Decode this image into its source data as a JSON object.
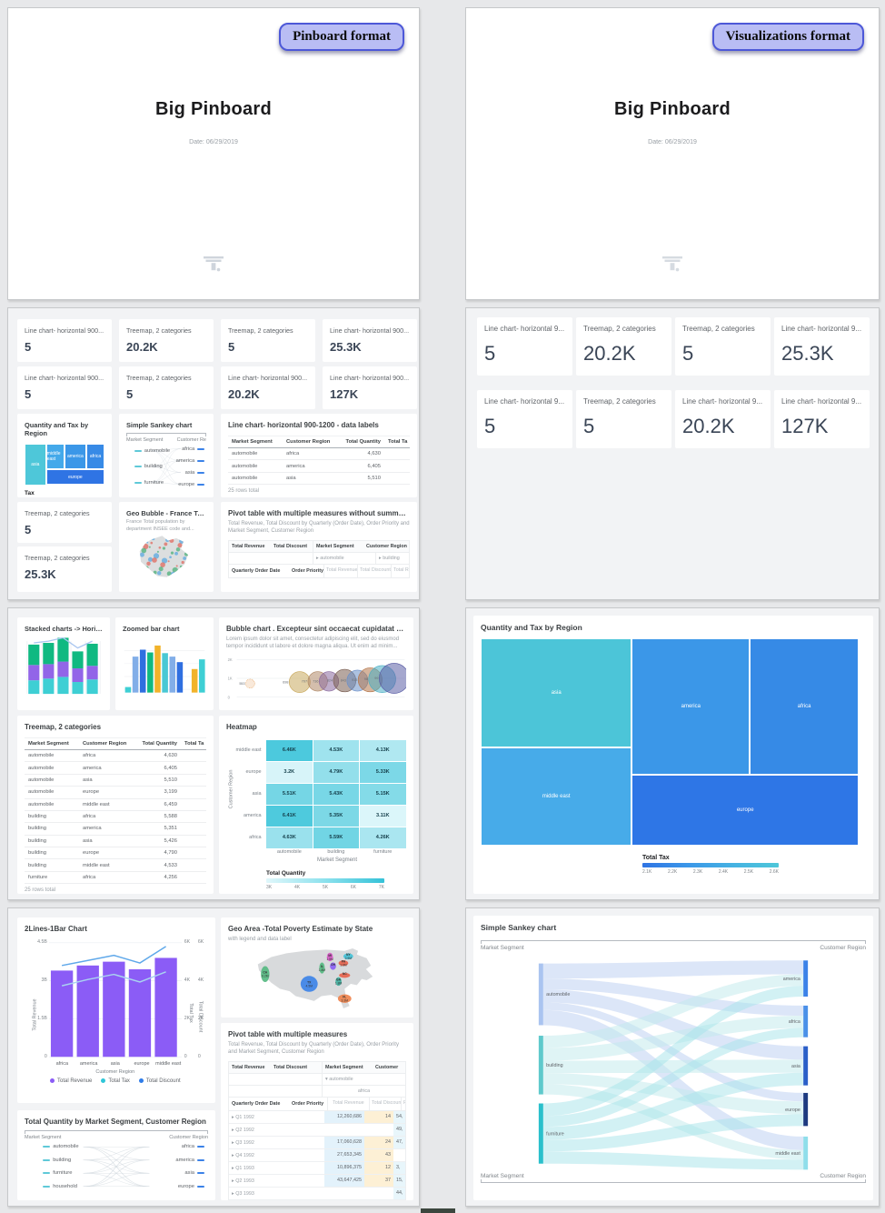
{
  "cover_left": {
    "badge": "Pinboard format",
    "title": "Big Pinboard",
    "date": "Date: 06/29/2019"
  },
  "cover_right": {
    "badge": "Visualizations format",
    "title": "Big Pinboard",
    "date": "Date: 06/29/2019"
  },
  "kpis_left": [
    {
      "title": "Line chart- horizontal 900...",
      "value": "5"
    },
    {
      "title": "Treemap, 2 categories",
      "value": "20.2K"
    },
    {
      "title": "Treemap, 2 categories",
      "value": "5"
    },
    {
      "title": "Line chart- horizontal 900...",
      "value": "25.3K"
    },
    {
      "title": "Line chart- horizontal 900...",
      "value": "5"
    },
    {
      "title": "Treemap, 2 categories",
      "value": "5"
    },
    {
      "title": "Line chart- horizontal 900...",
      "value": "20.2K"
    },
    {
      "title": "Line chart- horizontal 900...",
      "value": "127K"
    }
  ],
  "kpis_right": [
    {
      "title": "Line chart- horizontal 9...",
      "value": "5"
    },
    {
      "title": "Treemap, 2 categories",
      "value": "20.2K"
    },
    {
      "title": "Treemap, 2 categories",
      "value": "5"
    },
    {
      "title": "Line chart- horizontal 9...",
      "value": "25.3K"
    },
    {
      "title": "Line chart- horizontal 9...",
      "value": "5"
    },
    {
      "title": "Treemap, 2 categories",
      "value": "5"
    },
    {
      "title": "Line chart- horizontal 9...",
      "value": "20.2K"
    },
    {
      "title": "Line chart- horizontal 9...",
      "value": "127K"
    }
  ],
  "qt_small": {
    "title": "Quantity and Tax by Region",
    "legend_label": "Tax",
    "legend_ticks": [
      "2.2K",
      "2.3K",
      "2.4K",
      "2.5K"
    ],
    "nodes": [
      {
        "label": "asia",
        "color": "#4ec7d9"
      },
      {
        "label": "middle east",
        "color": "#44a9ea"
      },
      {
        "label": "america",
        "color": "#3b97e8"
      },
      {
        "label": "africa",
        "color": "#378ae6"
      },
      {
        "label": "europe",
        "color": "#2f74e4"
      }
    ]
  },
  "sankey_small": {
    "title": "Simple Sankey chart",
    "left_header": "Market Segment",
    "right_header": "Customer Re",
    "left": [
      "automobile",
      "building",
      "furniture"
    ],
    "right": [
      "africa",
      "america",
      "asia",
      "europe"
    ]
  },
  "line_table": {
    "title": "Line chart- horizontal 900-1200 - data labels",
    "columns": [
      "Market Segment",
      "Customer Region",
      "Total Quantity",
      "Total Ta"
    ],
    "rows": [
      [
        "automobile",
        "africa",
        "4,630"
      ],
      [
        "automobile",
        "america",
        "6,405"
      ],
      [
        "automobile",
        "asia",
        "5,510"
      ]
    ],
    "footer": "25 rows total"
  },
  "kpi_t5": {
    "title": "Treemap, 2 categories",
    "value": "5"
  },
  "kpi_t253": {
    "title": "Treemap, 2 categories",
    "value": "25.3K"
  },
  "geo_bubble": {
    "title": "Geo Bubble - France Tot...",
    "subtitle": "France Total population by department INSEE code and..."
  },
  "pivot1": {
    "title": "Pivot table with multiple measures without summaries",
    "subtitle": "Total Revenue, Total Discount by Quarterly (Order Date), Order Priority and Market Segment, Customer Region",
    "measures": [
      "Total Revenue",
      "Total Discount"
    ],
    "groups": [
      "Market Segment",
      "Customer Region"
    ],
    "filters": [
      "automobile",
      "building"
    ],
    "row_dims": [
      "Quarterly Order Date",
      "Order Priority"
    ],
    "value_cols": [
      "Total Revenue",
      "Total Discount",
      "Total Revenue"
    ]
  },
  "stacked": {
    "title": "Stacked charts -> Horizon...",
    "colors": [
      "#3ecfd4",
      "#9265e8",
      "#10b981"
    ],
    "bars": [
      [
        16,
        18,
        24
      ],
      [
        18,
        17,
        25
      ],
      [
        20,
        18,
        28
      ],
      [
        14,
        16,
        20
      ],
      [
        17,
        16,
        26
      ]
    ],
    "line": [
      60,
      62,
      66,
      54,
      62
    ],
    "line_color": "#a9c6f0"
  },
  "zoomed": {
    "title": "Zoomed bar chart",
    "bars": [
      {
        "v": 8,
        "c": "#3ecfd4"
      },
      {
        "v": 52,
        "c": "#82aee8"
      },
      {
        "v": 62,
        "c": "#2f6fe0"
      },
      {
        "v": 58,
        "c": "#10b981"
      },
      {
        "v": 68,
        "c": "#f2b32a"
      },
      {
        "v": 57,
        "c": "#49c8d4"
      },
      {
        "v": 52,
        "c": "#82aee8"
      },
      {
        "v": 44,
        "c": "#2f6fe0"
      },
      {
        "v": 0,
        "c": "transparent"
      },
      {
        "v": 34,
        "c": "#f2b32a"
      },
      {
        "v": 48,
        "c": "#3ecfd4"
      }
    ]
  },
  "bubble": {
    "title": "Bubble chart . Excepteur sint occaecat cupidatat non proid...",
    "subtitle": "Lorem ipsum dolor sit amet, consectetur adipiscing elit, sed do eiusmod tempor incididunt ut labore et dolore magna aliqua. Ut enim ad minim...",
    "yticks": [
      "2K",
      "1K",
      "0"
    ],
    "bubbles": [
      {
        "label": "553",
        "x": 32,
        "y": 40,
        "r": 6,
        "c": "#e8a96a",
        "dotted": true
      },
      {
        "label": "698",
        "x": 98,
        "y": 38,
        "r": 14,
        "c": "#c9a95e"
      },
      {
        "label": "707",
        "x": 122,
        "y": 37,
        "r": 13,
        "c": "#b08968"
      },
      {
        "label": "736",
        "x": 137,
        "y": 37,
        "r": 13,
        "c": "#8a6a9e"
      },
      {
        "label": "824",
        "x": 158,
        "y": 36,
        "r": 15,
        "c": "#7a5f52"
      },
      {
        "label": "843",
        "x": 175,
        "y": 36,
        "r": 14,
        "c": "#6a8fc9"
      },
      {
        "label": "913",
        "x": 192,
        "y": 35,
        "r": 16,
        "c": "#b5764a"
      },
      {
        "label": "98",
        "x": 208,
        "y": 34,
        "r": 18,
        "c": "#49aec4"
      },
      {
        "label": "99",
        "x": 224,
        "y": 33,
        "r": 20,
        "c": "#5b5ea6"
      }
    ]
  },
  "treemap_table": {
    "title": "Treemap, 2 categories",
    "columns": [
      "Market Segment",
      "Customer Region",
      "Total Quantity",
      "Total Ta"
    ],
    "rows": [
      [
        "automobile",
        "africa",
        "4,630"
      ],
      [
        "automobile",
        "america",
        "6,405"
      ],
      [
        "automobile",
        "asia",
        "5,510"
      ],
      [
        "automobile",
        "europe",
        "3,199"
      ],
      [
        "automobile",
        "middle east",
        "6,459"
      ],
      [
        "building",
        "africa",
        "5,588"
      ],
      [
        "building",
        "america",
        "5,351"
      ],
      [
        "building",
        "asia",
        "5,426"
      ],
      [
        "building",
        "europe",
        "4,790"
      ],
      [
        "building",
        "middle east",
        "4,533"
      ],
      [
        "furniture",
        "africa",
        "4,256"
      ]
    ],
    "footer": "25 rows total"
  },
  "heatmap": {
    "title": "Heatmap",
    "ylabel": "Customer Region",
    "xlabel": "Market Segment",
    "rows": [
      "middle east",
      "europe",
      "asia",
      "america",
      "africa"
    ],
    "cols": [
      "automobile",
      "building",
      "furniture"
    ],
    "values": [
      [
        "6.46K",
        "4.53K",
        "4.13K"
      ],
      [
        "3.2K",
        "4.79K",
        "5.33K"
      ],
      [
        "5.51K",
        "5.43K",
        "5.15K"
      ],
      [
        "6.41K",
        "5.35K",
        "3.11K"
      ],
      [
        "4.63K",
        "5.59K",
        "4.26K"
      ]
    ],
    "legend_label": "Total Quantity",
    "legend_ticks": [
      "3K",
      "4K",
      "5K",
      "6K",
      "7K"
    ]
  },
  "two_lines": {
    "title": "2Lines-1Bar Chart",
    "ylabel_left": "Total Revenue",
    "yticks_left": [
      "4.5B",
      "3B",
      "1.5B",
      "0"
    ],
    "ylabel_right1": "Total Tax",
    "ylabel_right2": "Total Discount",
    "yticks_right": [
      "6K",
      "4K",
      "2K",
      "0"
    ],
    "categories": [
      "africa",
      "america",
      "asia",
      "europe",
      "middle east"
    ],
    "xlabel": "Customer Region",
    "bar_color": "#8b5cf6",
    "bars": [
      3.4,
      3.6,
      3.75,
      3.45,
      3.9
    ],
    "line_discount": [
      3.6,
      3.8,
      4.0,
      3.7,
      4.35
    ],
    "line_tax": [
      2.8,
      3.05,
      3.25,
      2.95,
      3.35
    ],
    "ymax": 4.5,
    "legend": [
      {
        "label": "Total Revenue",
        "color": "#8b5cf6"
      },
      {
        "label": "Total Tax",
        "color": "#2fc6d8"
      },
      {
        "label": "Total Discount",
        "color": "#2f7ce8"
      }
    ]
  },
  "geo_area": {
    "title": "Geo Area -Total Poverty Estimate by State",
    "subtitle": "with legend and data label",
    "states": [
      {
        "code": "CA",
        "value": "6.2M",
        "color": "#53b87f"
      },
      {
        "code": "TX",
        "value": "4.5M",
        "color": "#3b82e8"
      },
      {
        "code": "FL",
        "value": "3.3M",
        "color": "#f0824a"
      },
      {
        "code": "IL",
        "value": "1.8M",
        "color": "#53b87f"
      },
      {
        "code": "MI",
        "value": "1.5M",
        "color": "#d957c8"
      },
      {
        "code": "OH",
        "value": "",
        "color": "#8b5cf6"
      },
      {
        "code": "PA",
        "value": "1.6M",
        "color": "#e8604a"
      },
      {
        "code": "NY",
        "value": "2.9M",
        "color": "#43c2d8"
      },
      {
        "code": "NC",
        "value": "",
        "color": "#e8604a"
      },
      {
        "code": "GA",
        "value": "1.8M",
        "color": "#3fb0a0"
      }
    ]
  },
  "pivot2": {
    "title": "Pivot table with multiple measures",
    "subtitle": "Total Revenue, Total Discount by Quarterly (Order Date), Order Priority and Market Segment, Customer Region",
    "measures": [
      "Total Revenue",
      "Total Discount"
    ],
    "groups": [
      "Market Segment",
      "Customer"
    ],
    "filter": "automobile",
    "subfilter": "africa",
    "row_dims": [
      "Quarterly Order Date",
      "Order Priority"
    ],
    "value_cols": [
      "Total Revenue",
      "Total Discount",
      "Re"
    ],
    "rows": [
      [
        "Q1 1992",
        "12,260,686",
        "14",
        "54,"
      ],
      [
        "Q2 1992",
        "",
        "",
        "49,"
      ],
      [
        "Q3 1992",
        "17,060,628",
        "24",
        "47,"
      ],
      [
        "Q4 1992",
        "27,653,345",
        "43",
        ""
      ],
      [
        "Q1 1993",
        "10,896,375",
        "12",
        "3,"
      ],
      [
        "Q2 1993",
        "43,647,425",
        "37",
        "15,"
      ],
      [
        "Q3 1993",
        "",
        "",
        "44,"
      ]
    ]
  },
  "sankey_bottom": {
    "title": "Total Quantity by Market Segment, Customer Region",
    "left_header": "Market Segment",
    "right_header": "Customer Region",
    "left": [
      "automobile",
      "building",
      "furniture",
      "household"
    ],
    "right": [
      "africa",
      "america",
      "asia",
      "europe"
    ]
  },
  "treemap_large": {
    "title": "Quantity and Tax by Region",
    "legend_label": "Total Tax",
    "legend_ticks": [
      "2.1K",
      "2.2K",
      "2.3K",
      "2.4K",
      "2.5K",
      "2.6K"
    ],
    "nodes": [
      {
        "label": "asia",
        "color": "#4cc5d8"
      },
      {
        "label": "middle east",
        "color": "#47abe9"
      },
      {
        "label": "america",
        "color": "#3b97e8"
      },
      {
        "label": "africa",
        "color": "#368ae6"
      },
      {
        "label": "europe",
        "color": "#2e76e6"
      }
    ]
  },
  "sankey_large": {
    "title": "Simple Sankey chart",
    "left_header": "Market Segment",
    "right_header": "Customer Region",
    "footer_left": "Market Segment",
    "footer_right": "Customer Region",
    "left": [
      {
        "label": "automobile",
        "color": "#aac4f0"
      },
      {
        "label": "building",
        "color": "#5fc9cc"
      },
      {
        "label": "furniture",
        "color": "#2ac0cc"
      }
    ],
    "right": [
      {
        "label": "america",
        "color": "#3b82e8"
      },
      {
        "label": "africa",
        "color": "#4a90e8"
      },
      {
        "label": "asia",
        "color": "#2b5fc8"
      },
      {
        "label": "europe",
        "color": "#1e3a80"
      },
      {
        "label": "middle east",
        "color": "#8fdeea"
      }
    ]
  }
}
